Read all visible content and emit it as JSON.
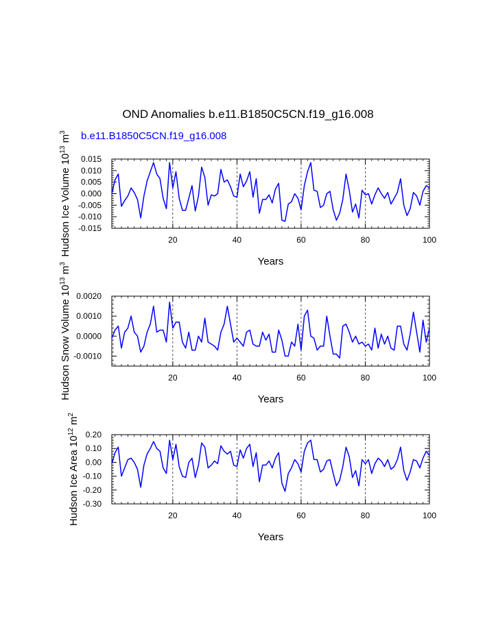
{
  "title": "OND Anomalies b.e11.B1850C5CN.f19_g16.008",
  "case_label": "b.e11.B1850C5CN.f19_g16.008",
  "colors": {
    "line": "#0000ff",
    "axis": "#000000",
    "case_label": "#0000ff"
  },
  "chart_data": [
    {
      "type": "line",
      "xlabel": "Years",
      "ylabel": "Hudson Ice Volume 10",
      "ylabel_exp": "13",
      "ylabel_unit": " m",
      "ylabel_unit_exp": "3",
      "xlim": [
        1,
        100
      ],
      "ylim": [
        -0.015,
        0.015
      ],
      "xticks": [
        20,
        40,
        60,
        80,
        100
      ],
      "yticks": [
        "-0.015",
        "-0.010",
        "-0.005",
        "0.000",
        "0.005",
        "0.010",
        "0.015"
      ],
      "vlines": [
        20,
        40,
        60,
        80
      ],
      "series": [
        {
          "x": [
            1,
            2,
            3,
            4,
            5,
            6,
            7,
            8,
            9,
            10,
            11,
            12,
            13,
            14,
            15,
            16,
            17,
            18,
            19,
            20,
            21,
            22,
            23,
            24,
            25,
            26,
            27,
            28,
            29,
            30,
            31,
            32,
            33,
            34,
            35,
            36,
            37,
            38,
            39,
            40,
            41,
            42,
            43,
            44,
            45,
            46,
            47,
            48,
            49,
            50,
            51,
            52,
            53,
            54,
            55,
            56,
            57,
            58,
            59,
            60,
            61,
            62,
            63,
            64,
            65,
            66,
            67,
            68,
            69,
            70,
            71,
            72,
            73,
            74,
            75,
            76,
            77,
            78,
            79,
            80,
            81,
            82,
            83,
            84,
            85,
            86,
            87,
            88,
            89,
            90,
            91,
            92,
            93,
            94,
            95,
            96,
            97,
            98,
            99,
            100
          ],
          "values": [
            0.0,
            0.006,
            0.0085,
            -0.0055,
            -0.003,
            -0.001,
            0.0025,
            0.0005,
            -0.0025,
            -0.0105,
            -0.001,
            0.0055,
            0.0095,
            0.0135,
            0.0085,
            0.0065,
            -0.002,
            -0.0065,
            0.0135,
            0.0025,
            0.0095,
            -0.002,
            -0.0072,
            -0.0072,
            -0.002,
            0.0035,
            -0.0075,
            -0.001,
            0.0115,
            0.007,
            -0.005,
            -0.0005,
            -0.001,
            0.0,
            0.0105,
            0.005,
            0.006,
            0.003,
            -0.001,
            -0.0015,
            0.0085,
            0.003,
            0.0055,
            0.0095,
            -0.0015,
            0.0065,
            -0.0085,
            -0.0025,
            -0.0025,
            -0.0005,
            -0.004,
            0.002,
            0.0045,
            -0.0115,
            -0.012,
            -0.0045,
            -0.0035,
            0.0,
            -0.002,
            -0.007,
            0.0035,
            0.0095,
            0.0135,
            0.0015,
            0.001,
            -0.006,
            -0.005,
            0.0,
            0.001,
            -0.007,
            -0.0115,
            -0.0085,
            -0.0025,
            0.0085,
            0.0015,
            -0.008,
            -0.0045,
            -0.0105,
            0.0015,
            -0.0005,
            0.0,
            -0.0045,
            -0.0005,
            0.0025,
            0.0,
            -0.002,
            0.0005,
            -0.0045,
            -0.002,
            0.0005,
            0.0065,
            -0.005,
            -0.0095,
            -0.0065,
            0.0005,
            -0.001,
            -0.005,
            0.001,
            0.0035,
            0.0025
          ]
        }
      ]
    },
    {
      "type": "line",
      "xlabel": "Years",
      "ylabel": "Hudson Snow Volume 10",
      "ylabel_exp": "13",
      "ylabel_unit": " m",
      "ylabel_unit_exp": "3",
      "xlim": [
        1,
        100
      ],
      "ylim": [
        -0.0015,
        0.002
      ],
      "xticks": [
        20,
        40,
        60,
        80,
        100
      ],
      "yticks": [
        "-0.0010",
        "0.0000",
        "0.0010",
        "0.0020"
      ],
      "vlines": [
        20,
        40,
        60,
        80
      ],
      "series": [
        {
          "x": [
            1,
            2,
            3,
            4,
            5,
            6,
            7,
            8,
            9,
            10,
            11,
            12,
            13,
            14,
            15,
            16,
            17,
            18,
            19,
            20,
            21,
            22,
            23,
            24,
            25,
            26,
            27,
            28,
            29,
            30,
            31,
            32,
            33,
            34,
            35,
            36,
            37,
            38,
            39,
            40,
            41,
            42,
            43,
            44,
            45,
            46,
            47,
            48,
            49,
            50,
            51,
            52,
            53,
            54,
            55,
            56,
            57,
            58,
            59,
            60,
            61,
            62,
            63,
            64,
            65,
            66,
            67,
            68,
            69,
            70,
            71,
            72,
            73,
            74,
            75,
            76,
            77,
            78,
            79,
            80,
            81,
            82,
            83,
            84,
            85,
            86,
            87,
            88,
            89,
            90,
            91,
            92,
            93,
            94,
            95,
            96,
            97,
            98,
            99,
            100
          ],
          "values": [
            -0.0001,
            0.0003,
            0.0005,
            -0.0006,
            0.0002,
            0.0004,
            0.001,
            0.0002,
            0.0,
            -0.0008,
            -0.0005,
            0.0002,
            0.0006,
            0.0015,
            0.0002,
            0.0003,
            0.0003,
            -0.0003,
            0.0017,
            0.0004,
            0.0007,
            0.0007,
            -0.0003,
            -0.0006,
            0.0002,
            -0.0007,
            -0.0007,
            0.0,
            -0.0003,
            0.0009,
            -0.0003,
            -0.0004,
            -0.0005,
            -0.0007,
            0.0002,
            0.0006,
            0.0015,
            0.0006,
            -0.0003,
            -0.0001,
            -0.0003,
            -0.0005,
            0.0002,
            0.0003,
            -0.0004,
            -0.0005,
            -0.0005,
            0.0002,
            -0.0002,
            0.0001,
            -0.0008,
            -0.0008,
            0.0003,
            -0.0002,
            -0.001,
            -0.001,
            -0.0003,
            -0.0005,
            0.0006,
            -0.0007,
            0.001,
            0.0013,
            0.0,
            -0.0001,
            -0.0007,
            -0.0005,
            -0.0005,
            0.001,
            0.0,
            -0.0009,
            -0.0009,
            -0.0011,
            0.0005,
            0.0006,
            0.0002,
            -0.0003,
            0.0,
            -0.0004,
            -0.0003,
            -0.0005,
            -0.0004,
            -0.0007,
            0.0004,
            -0.0006,
            0.0001,
            -0.0004,
            0.0,
            -0.0006,
            -0.0007,
            0.0005,
            0.0005,
            -0.0004,
            -0.0007,
            0.0001,
            0.0012,
            0.0002,
            -0.0008,
            0.0008,
            -0.0003,
            0.0004
          ]
        }
      ]
    },
    {
      "type": "line",
      "xlabel": "Years",
      "ylabel": "Hudson Ice Area 10",
      "ylabel_exp": "12",
      "ylabel_unit": " m",
      "ylabel_unit_exp": "2",
      "xlim": [
        1,
        100
      ],
      "ylim": [
        -0.3,
        0.2
      ],
      "xticks": [
        20,
        40,
        60,
        80,
        100
      ],
      "yticks": [
        "-0.30",
        "-0.20",
        "-0.10",
        "0.00",
        "0.10",
        "0.20"
      ],
      "vlines": [
        20,
        40,
        60,
        80
      ],
      "series": [
        {
          "x": [
            1,
            2,
            3,
            4,
            5,
            6,
            7,
            8,
            9,
            10,
            11,
            12,
            13,
            14,
            15,
            16,
            17,
            18,
            19,
            20,
            21,
            22,
            23,
            24,
            25,
            26,
            27,
            28,
            29,
            30,
            31,
            32,
            33,
            34,
            35,
            36,
            37,
            38,
            39,
            40,
            41,
            42,
            43,
            44,
            45,
            46,
            47,
            48,
            49,
            50,
            51,
            52,
            53,
            54,
            55,
            56,
            57,
            58,
            59,
            60,
            61,
            62,
            63,
            64,
            65,
            66,
            67,
            68,
            69,
            70,
            71,
            72,
            73,
            74,
            75,
            76,
            77,
            78,
            79,
            80,
            81,
            82,
            83,
            84,
            85,
            86,
            87,
            88,
            89,
            90,
            91,
            92,
            93,
            94,
            95,
            96,
            97,
            98,
            99,
            100
          ],
          "values": [
            -0.01,
            0.07,
            0.11,
            -0.1,
            -0.04,
            0.02,
            0.03,
            0.0,
            -0.05,
            -0.18,
            -0.02,
            0.06,
            0.1,
            0.15,
            0.1,
            0.08,
            -0.04,
            -0.08,
            0.16,
            0.02,
            0.13,
            -0.03,
            -0.1,
            -0.11,
            0.0,
            0.03,
            -0.11,
            -0.02,
            0.14,
            0.11,
            -0.04,
            -0.02,
            0.01,
            -0.01,
            0.12,
            0.08,
            0.06,
            0.08,
            -0.02,
            -0.03,
            0.09,
            0.03,
            0.1,
            0.13,
            -0.03,
            0.07,
            -0.14,
            -0.02,
            -0.02,
            0.01,
            -0.04,
            0.03,
            0.07,
            -0.15,
            -0.21,
            -0.08,
            -0.04,
            0.02,
            -0.01,
            -0.07,
            0.08,
            0.14,
            0.16,
            0.02,
            0.02,
            -0.07,
            -0.05,
            0.01,
            0.02,
            -0.08,
            -0.17,
            -0.13,
            -0.03,
            0.11,
            0.04,
            -0.11,
            -0.06,
            -0.17,
            0.02,
            -0.01,
            0.02,
            -0.08,
            -0.01,
            0.03,
            0.01,
            -0.03,
            0.02,
            -0.05,
            -0.03,
            0.02,
            0.11,
            -0.06,
            -0.13,
            -0.07,
            0.02,
            0.01,
            -0.04,
            0.03,
            0.08,
            0.05
          ]
        }
      ]
    }
  ]
}
